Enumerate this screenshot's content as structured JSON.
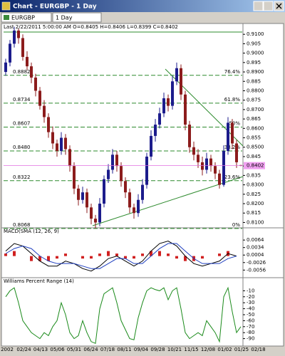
{
  "window": {
    "title": "Chart - EURGBP - 1 Day",
    "symbol": "EURGBP",
    "period": "1 Day",
    "info": "Last 2/22/2011 5:00:00 AM O=0.8405 H=0.8406 L=0.8399 C=0.8402"
  },
  "chart_data": [
    {
      "type": "candlestick",
      "up_color": "#1c1c8c",
      "down_color": "#8c1c1c",
      "open": [
        0.89,
        0.895,
        0.905,
        0.912,
        0.908,
        0.898,
        0.893,
        0.887,
        0.88,
        0.872,
        0.866,
        0.858,
        0.852,
        0.848,
        0.855,
        0.849,
        0.84,
        0.828,
        0.822,
        0.826,
        0.818,
        0.812,
        0.81,
        0.82,
        0.833,
        0.838,
        0.846,
        0.84,
        0.832,
        0.826,
        0.818,
        0.815,
        0.822,
        0.83,
        0.845,
        0.856,
        0.862,
        0.868,
        0.876,
        0.872,
        0.885,
        0.892,
        0.878,
        0.862,
        0.85,
        0.846,
        0.842,
        0.838,
        0.844,
        0.84,
        0.836,
        0.83,
        0.848,
        0.863,
        0.852,
        0.8405
      ],
      "high": [
        0.897,
        0.907,
        0.914,
        0.913,
        0.91,
        0.901,
        0.895,
        0.889,
        0.882,
        0.875,
        0.868,
        0.861,
        0.854,
        0.858,
        0.857,
        0.851,
        0.842,
        0.83,
        0.829,
        0.828,
        0.82,
        0.814,
        0.823,
        0.835,
        0.841,
        0.849,
        0.848,
        0.842,
        0.834,
        0.828,
        0.82,
        0.825,
        0.833,
        0.847,
        0.859,
        0.865,
        0.871,
        0.879,
        0.878,
        0.888,
        0.895,
        0.894,
        0.88,
        0.864,
        0.853,
        0.849,
        0.845,
        0.847,
        0.846,
        0.842,
        0.838,
        0.851,
        0.866,
        0.865,
        0.854,
        0.8406
      ],
      "low": [
        0.888,
        0.893,
        0.903,
        0.905,
        0.896,
        0.891,
        0.884,
        0.877,
        0.87,
        0.863,
        0.855,
        0.849,
        0.845,
        0.846,
        0.846,
        0.837,
        0.825,
        0.819,
        0.82,
        0.815,
        0.809,
        0.8068,
        0.808,
        0.818,
        0.831,
        0.836,
        0.837,
        0.829,
        0.823,
        0.815,
        0.812,
        0.813,
        0.82,
        0.828,
        0.843,
        0.853,
        0.86,
        0.866,
        0.869,
        0.87,
        0.883,
        0.875,
        0.859,
        0.847,
        0.843,
        0.839,
        0.835,
        0.836,
        0.837,
        0.833,
        0.828,
        0.829,
        0.846,
        0.849,
        0.839,
        0.8399
      ],
      "close": [
        0.895,
        0.905,
        0.912,
        0.908,
        0.898,
        0.893,
        0.887,
        0.88,
        0.872,
        0.866,
        0.858,
        0.852,
        0.848,
        0.855,
        0.849,
        0.84,
        0.828,
        0.822,
        0.826,
        0.818,
        0.812,
        0.81,
        0.82,
        0.833,
        0.838,
        0.846,
        0.84,
        0.832,
        0.826,
        0.818,
        0.815,
        0.822,
        0.83,
        0.845,
        0.856,
        0.862,
        0.868,
        0.876,
        0.872,
        0.885,
        0.892,
        0.878,
        0.862,
        0.85,
        0.846,
        0.842,
        0.838,
        0.844,
        0.84,
        0.836,
        0.83,
        0.848,
        0.863,
        0.852,
        0.842,
        0.8402
      ],
      "ylim": [
        0.8079,
        0.9131
      ],
      "yticks": [
        {
          "value": 0.81,
          "label": "0.8100"
        },
        0.815,
        {
          "value": 0.82,
          "label": "0.8200"
        },
        0.825,
        {
          "value": 0.83,
          "label": "0.8300"
        },
        0.835,
        {
          "value": 0.84,
          "label": "0.8400"
        },
        0.845,
        {
          "value": 0.85,
          "label": "0.8500"
        },
        0.855,
        {
          "value": 0.86,
          "label": "0.8600"
        },
        0.865,
        {
          "value": 0.87,
          "label": "0.8700"
        },
        0.875,
        {
          "value": 0.88,
          "label": "0.8800"
        },
        0.885,
        {
          "value": 0.89,
          "label": "0.8900"
        },
        0.895,
        {
          "value": 0.9,
          "label": "0.9000"
        },
        0.905,
        {
          "value": 0.91,
          "label": "0.9100"
        }
      ],
      "fib_color": "#2e8b2e",
      "fib_levels": [
        {
          "price": 0.8882,
          "percent": "76.4%"
        },
        {
          "price": 0.8734,
          "percent": "61.8%"
        },
        {
          "price": 0.8607,
          "percent": "50%"
        },
        {
          "price": {
            "value": 0.848,
            "label": "0.8480"
          },
          "percent": "38.2%"
        },
        {
          "price": 0.8322,
          "percent": "23.6%"
        },
        {
          "price": 0.8068,
          "percent": "0%"
        }
      ],
      "x_labels": [
        "2002",
        "02/24",
        "04/13",
        "05/06",
        "05/31",
        "06/24",
        "07/18",
        "08/11",
        "09/04",
        "09/28",
        "10/21",
        "11/15",
        "12/08",
        "01/02",
        "01/25",
        "02/18"
      ]
    },
    {
      "type": "macd",
      "title": "MACD(SMA (12, 26, 9)",
      "macd_color": "#000000",
      "signal_color": "#2040c0",
      "histogram_color": "#d02020",
      "macd": [
        0.002,
        0.005,
        0.004,
        0.001,
        -0.002,
        -0.004,
        -0.004,
        -0.002,
        -0.003,
        -0.005,
        -0.006,
        -0.004,
        -0.001,
        0.0,
        -0.002,
        -0.004,
        -0.002,
        0.002,
        0.005,
        0.006,
        0.004,
        0.0,
        -0.003,
        -0.004,
        -0.003,
        -0.002,
        0.001,
        0.0
      ],
      "signal": [
        0.001,
        0.003,
        0.004,
        0.003,
        0.0,
        -0.002,
        -0.003,
        -0.003,
        -0.003,
        -0.004,
        -0.005,
        -0.005,
        -0.003,
        -0.001,
        -0.001,
        -0.003,
        -0.003,
        0.0,
        0.003,
        0.005,
        0.005,
        0.002,
        -0.001,
        -0.003,
        -0.003,
        -0.003,
        -0.001,
        0.0
      ],
      "histogram": [
        0.001,
        0.002,
        0.0,
        -0.002,
        -0.002,
        -0.002,
        -0.001,
        0.001,
        0.0,
        -0.001,
        -0.001,
        0.001,
        0.002,
        0.001,
        -0.001,
        -0.001,
        0.001,
        0.002,
        0.002,
        0.001,
        -0.001,
        -0.002,
        -0.002,
        -0.001,
        0.0,
        0.001,
        0.002,
        0.0
      ],
      "ylim": [
        -0.0075,
        0.009
      ],
      "yticks": [
        0.0064,
        0.0034,
        0.0004,
        -0.0026,
        -0.0056
      ]
    },
    {
      "type": "williams",
      "title": "Williams Percent Range (14)",
      "color": "#1a8a1a",
      "values": [
        -20,
        -10,
        -5,
        -30,
        -60,
        -70,
        -80,
        -85,
        -90,
        -80,
        -85,
        -70,
        -60,
        -30,
        -50,
        -80,
        -90,
        -85,
        -60,
        -80,
        -95,
        -98,
        -40,
        -15,
        -10,
        -5,
        -30,
        -60,
        -75,
        -90,
        -92,
        -55,
        -30,
        -10,
        -5,
        -8,
        -10,
        -5,
        -25,
        -10,
        -5,
        -40,
        -80,
        -90,
        -85,
        -80,
        -85,
        -60,
        -70,
        -80,
        -95,
        -20,
        -5,
        -45,
        -80,
        -70
      ],
      "ylim": [
        -100,
        0
      ],
      "yticks": [
        -10,
        -20,
        -30,
        -40,
        -50,
        -60,
        -70,
        -80,
        -90
      ]
    }
  ]
}
